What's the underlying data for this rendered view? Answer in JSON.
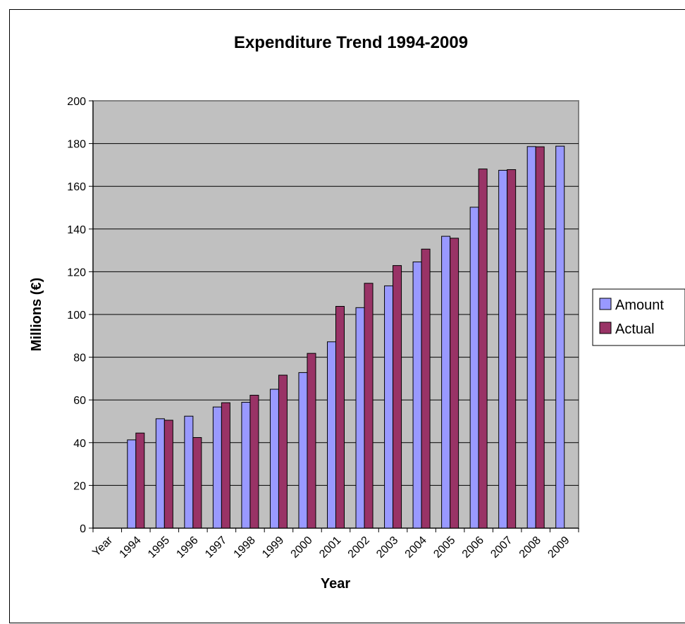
{
  "chart_data": {
    "type": "bar",
    "title": "Expenditure Trend 1994-2009",
    "xlabel": "Year",
    "ylabel": "Millions (€)",
    "categories": [
      "Year",
      "1994",
      "1995",
      "1996",
      "1997",
      "1998",
      "1999",
      "2000",
      "2001",
      "2002",
      "2003",
      "2004",
      "2005",
      "2006",
      "2007",
      "2008",
      "2009"
    ],
    "ylim": [
      0,
      200
    ],
    "yticks": [
      0,
      20,
      40,
      60,
      80,
      100,
      120,
      140,
      160,
      180,
      200
    ],
    "grid": true,
    "legend_position": "right",
    "plot_background": "#c0c0c0",
    "series": [
      {
        "name": "Amount",
        "color": "#9999ff",
        "values": [
          null,
          41.3,
          51.2,
          52.4,
          56.7,
          58.9,
          65,
          72.8,
          87.2,
          103.2,
          113.4,
          124.6,
          136.6,
          150.2,
          167.5,
          178.6,
          178.8
        ]
      },
      {
        "name": "Actual",
        "color": "#993366",
        "values": [
          null,
          44.5,
          50.5,
          42.4,
          58.7,
          62.2,
          71.6,
          81.8,
          103.8,
          114.6,
          122.9,
          130.6,
          135.7,
          168.1,
          167.8,
          178.5,
          null
        ]
      }
    ]
  }
}
